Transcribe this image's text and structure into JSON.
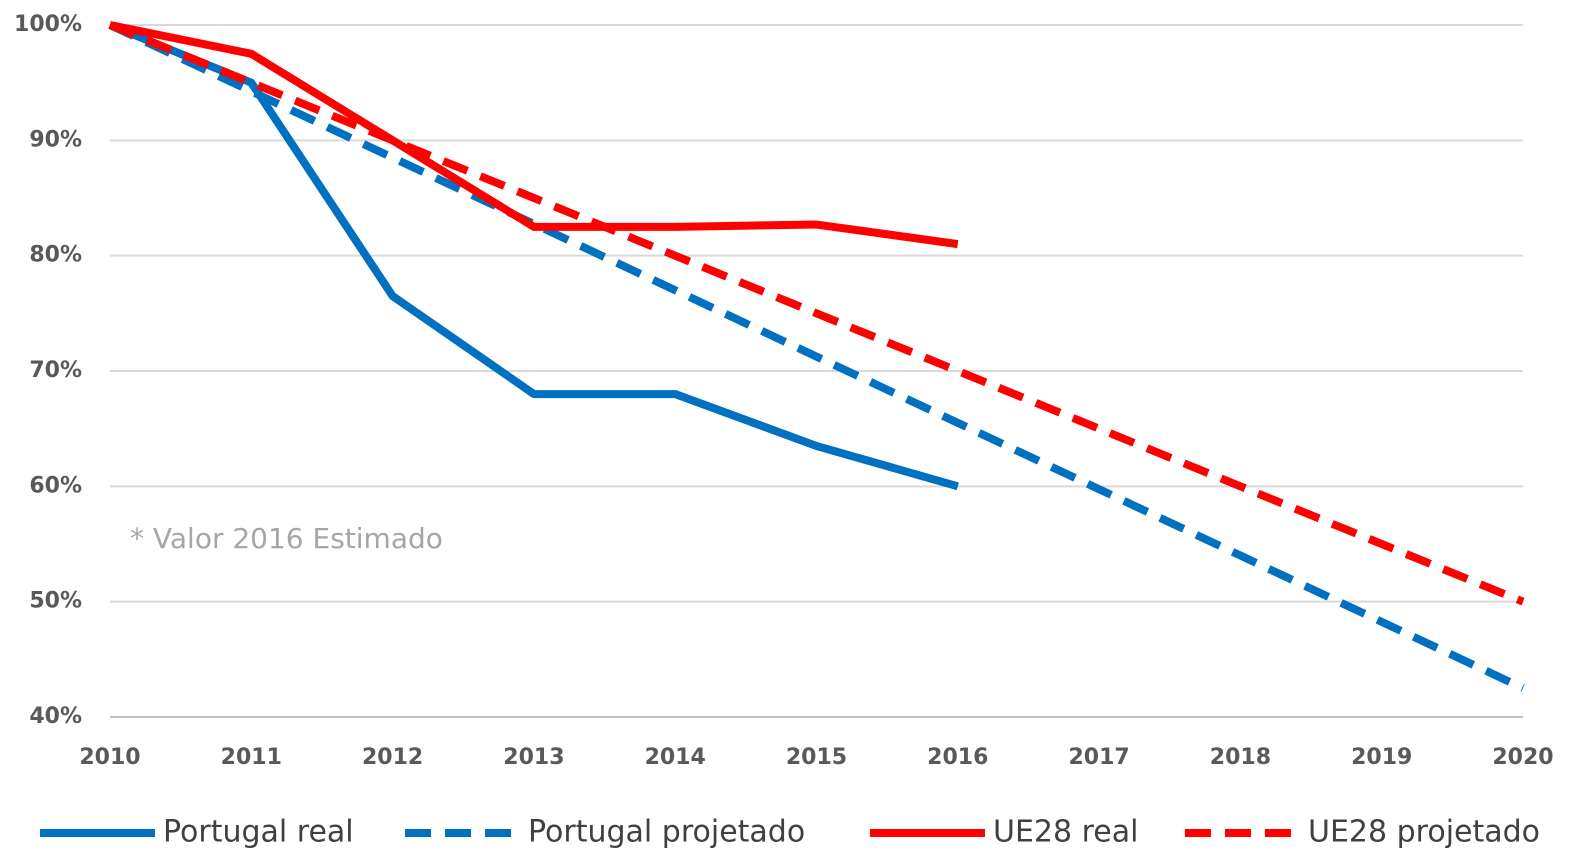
{
  "chart_data": {
    "type": "line",
    "annotation": "* Valor 2016 Estimado",
    "x": [
      2010,
      2011,
      2012,
      2013,
      2014,
      2015,
      2016,
      2017,
      2018,
      2019,
      2020
    ],
    "xlim": [
      2010,
      2020
    ],
    "xticks": [
      2010,
      2011,
      2012,
      2013,
      2014,
      2015,
      2016,
      2017,
      2018,
      2019,
      2020
    ],
    "ylim": [
      40,
      100
    ],
    "yticks": [
      {
        "value": 40,
        "label": "40%"
      },
      {
        "value": 50,
        "label": "50%"
      },
      {
        "value": 60,
        "label": "60%"
      },
      {
        "value": 70,
        "label": "70%"
      },
      {
        "value": 80,
        "label": "80%"
      },
      {
        "value": 90,
        "label": "90%"
      },
      {
        "value": 100,
        "label": "100%"
      }
    ],
    "grid": true,
    "legend": "bottom",
    "series": [
      {
        "name": "Portugal real",
        "color": "#0070c0",
        "dash": false,
        "values": [
          100,
          95,
          76.5,
          68,
          68,
          63.5,
          60,
          null,
          null,
          null,
          null
        ]
      },
      {
        "name": "Portugal projetado",
        "color": "#0070c0",
        "dash": true,
        "values": [
          100,
          94.25,
          88.5,
          82.75,
          77,
          71.25,
          65.5,
          59.75,
          54,
          48.25,
          42.5
        ]
      },
      {
        "name": "UE28 real",
        "color": "#ff0000",
        "dash": false,
        "values": [
          100,
          97.5,
          90,
          82.5,
          82.5,
          82.7,
          81,
          null,
          null,
          null,
          null
        ]
      },
      {
        "name": "UE28 projetado",
        "color": "#ff0000",
        "dash": true,
        "values": [
          100,
          95,
          90,
          85,
          80,
          75,
          70,
          65,
          60,
          55,
          50
        ]
      }
    ]
  }
}
